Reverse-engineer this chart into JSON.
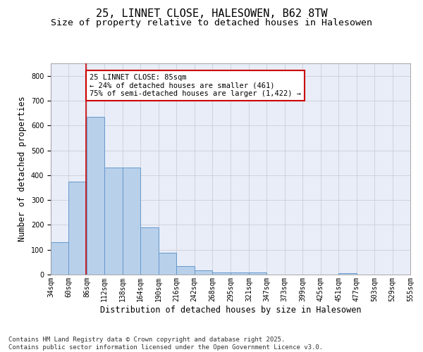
{
  "title1": "25, LINNET CLOSE, HALESOWEN, B62 8TW",
  "title2": "Size of property relative to detached houses in Halesowen",
  "xlabel": "Distribution of detached houses by size in Halesowen",
  "ylabel": "Number of detached properties",
  "bin_edges": [
    34,
    60,
    86,
    112,
    138,
    164,
    190,
    216,
    242,
    268,
    295,
    321,
    347,
    373,
    399,
    425,
    451,
    477,
    503,
    529,
    555
  ],
  "bar_heights": [
    130,
    375,
    635,
    430,
    430,
    190,
    87,
    33,
    18,
    8,
    8,
    8,
    0,
    0,
    0,
    0,
    7,
    0,
    0,
    0
  ],
  "bar_color": "#b8d0ea",
  "bar_edgecolor": "#6699cc",
  "property_size": 85,
  "vline_color": "#cc0000",
  "annotation_line1": "25 LINNET CLOSE: 85sqm",
  "annotation_line2": "← 24% of detached houses are smaller (461)",
  "annotation_line3": "75% of semi-detached houses are larger (1,422) →",
  "annotation_box_edgecolor": "#cc0000",
  "annotation_box_facecolor": "#ffffff",
  "ylim": [
    0,
    850
  ],
  "yticks": [
    0,
    100,
    200,
    300,
    400,
    500,
    600,
    700,
    800
  ],
  "grid_color": "#c8c8d0",
  "bg_color": "#e8edf8",
  "footer_text": "Contains HM Land Registry data © Crown copyright and database right 2025.\nContains public sector information licensed under the Open Government Licence v3.0.",
  "title1_fontsize": 11,
  "title2_fontsize": 9.5,
  "xlabel_fontsize": 8.5,
  "ylabel_fontsize": 8.5,
  "tick_fontsize": 7,
  "annotation_fontsize": 7.5,
  "footer_fontsize": 6.5
}
